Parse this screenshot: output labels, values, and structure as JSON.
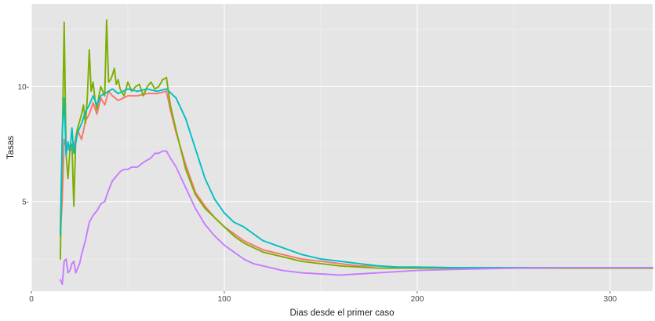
{
  "chart_data": {
    "type": "line",
    "title": "",
    "xlabel": "Dias desde el primer caso",
    "ylabel": "Tasas",
    "xlim": [
      0,
      322
    ],
    "ylim": [
      1.1,
      13.6
    ],
    "x_ticks": [
      0,
      100,
      200,
      300
    ],
    "y_ticks": [
      5,
      10
    ],
    "x_tick_labels": [
      "0",
      "100",
      "200",
      "300"
    ],
    "y_tick_labels": [
      "5-",
      "10-"
    ],
    "grid": true,
    "legend": "none",
    "panel_color": "#e5e5e5",
    "series": [
      {
        "color": "#f8766d",
        "x": [
          15,
          16,
          17,
          18,
          20,
          22,
          24,
          26,
          28,
          30,
          32,
          34,
          36,
          38,
          40,
          42,
          45,
          50,
          55,
          60,
          65,
          70,
          72,
          75,
          80,
          85,
          90,
          95,
          100,
          105,
          110,
          115,
          120,
          130,
          140,
          150,
          160,
          170,
          180,
          190,
          200,
          220,
          250,
          280,
          322
        ],
        "y": [
          3.5,
          5.1,
          7.7,
          7.4,
          7.2,
          7.4,
          8.1,
          7.7,
          8.5,
          8.8,
          9.3,
          8.8,
          9.5,
          9.2,
          9.8,
          9.6,
          9.4,
          9.6,
          9.6,
          9.7,
          9.7,
          9.8,
          9.0,
          8.0,
          6.6,
          5.4,
          4.8,
          4.3,
          3.9,
          3.6,
          3.3,
          3.1,
          2.9,
          2.7,
          2.5,
          2.4,
          2.3,
          2.2,
          2.2,
          2.15,
          2.15,
          2.12,
          2.12,
          2.12,
          2.12
        ]
      },
      {
        "color": "#7cae00",
        "x": [
          15,
          16,
          17,
          18,
          19,
          20,
          21,
          22,
          23,
          24,
          25,
          26,
          27,
          28,
          29,
          30,
          31,
          32,
          33,
          34,
          35,
          36,
          37,
          38,
          39,
          40,
          41,
          42,
          43,
          44,
          45,
          46,
          48,
          50,
          52,
          54,
          56,
          58,
          60,
          62,
          64,
          66,
          68,
          70,
          72,
          75,
          80,
          85,
          90,
          95,
          100,
          105,
          110,
          115,
          120,
          130,
          140,
          150,
          160,
          170,
          180,
          190,
          200,
          220,
          250,
          280,
          322
        ],
        "y": [
          2.5,
          7.5,
          12.8,
          7.0,
          6.0,
          7.3,
          7.5,
          4.8,
          7.8,
          8.2,
          8.5,
          8.8,
          9.2,
          8.4,
          9.5,
          11.6,
          9.8,
          10.2,
          9.4,
          9.0,
          9.6,
          10.0,
          9.8,
          9.6,
          12.9,
          10.2,
          10.3,
          10.5,
          10.8,
          10.1,
          10.3,
          9.9,
          9.6,
          10.2,
          9.8,
          10.0,
          10.1,
          9.6,
          10.0,
          10.2,
          9.9,
          10.0,
          10.3,
          10.4,
          9.2,
          8.1,
          6.4,
          5.3,
          4.7,
          4.3,
          3.9,
          3.5,
          3.2,
          3.0,
          2.8,
          2.6,
          2.4,
          2.3,
          2.2,
          2.15,
          2.1,
          2.1,
          2.1,
          2.1,
          2.1,
          2.1,
          2.1
        ]
      },
      {
        "color": "#00bfc4",
        "x": [
          15,
          16,
          17,
          18,
          19,
          20,
          21,
          22,
          24,
          26,
          28,
          30,
          32,
          34,
          36,
          38,
          40,
          42,
          45,
          50,
          55,
          60,
          65,
          70,
          75,
          80,
          85,
          90,
          95,
          100,
          105,
          110,
          115,
          120,
          130,
          140,
          150,
          160,
          170,
          180,
          190,
          200,
          220,
          250,
          280,
          322
        ],
        "y": [
          3.6,
          8.0,
          9.5,
          7.0,
          7.6,
          7.2,
          8.2,
          7.1,
          8.0,
          8.4,
          8.9,
          9.2,
          9.6,
          9.2,
          9.6,
          9.7,
          9.8,
          9.9,
          9.7,
          9.9,
          9.8,
          9.9,
          9.8,
          9.9,
          9.5,
          8.6,
          7.3,
          6.0,
          5.1,
          4.5,
          4.1,
          3.9,
          3.6,
          3.3,
          3.0,
          2.7,
          2.5,
          2.4,
          2.3,
          2.2,
          2.15,
          2.15,
          2.12,
          2.12,
          2.12,
          2.12
        ]
      },
      {
        "color": "#c77cff",
        "x": [
          15,
          16,
          17,
          18,
          19,
          20,
          21,
          22,
          23,
          24,
          25,
          26,
          27,
          28,
          29,
          30,
          32,
          34,
          36,
          38,
          40,
          42,
          44,
          46,
          48,
          50,
          52,
          55,
          58,
          60,
          62,
          64,
          66,
          68,
          70,
          72,
          75,
          80,
          85,
          90,
          95,
          100,
          105,
          110,
          115,
          120,
          130,
          140,
          150,
          160,
          170,
          180,
          190,
          200,
          220,
          250,
          280,
          322
        ],
        "y": [
          1.6,
          1.4,
          2.4,
          2.5,
          1.9,
          2.0,
          2.3,
          2.4,
          1.9,
          2.1,
          2.3,
          2.7,
          3.0,
          3.3,
          3.7,
          4.1,
          4.4,
          4.6,
          4.9,
          5.0,
          5.5,
          5.9,
          6.1,
          6.3,
          6.4,
          6.4,
          6.5,
          6.5,
          6.7,
          6.8,
          6.9,
          7.1,
          7.1,
          7.2,
          7.2,
          6.9,
          6.5,
          5.6,
          4.7,
          4.0,
          3.5,
          3.1,
          2.8,
          2.5,
          2.3,
          2.2,
          2.0,
          1.9,
          1.85,
          1.8,
          1.85,
          1.9,
          1.95,
          2.0,
          2.05,
          2.1,
          2.12,
          2.12
        ]
      }
    ]
  }
}
